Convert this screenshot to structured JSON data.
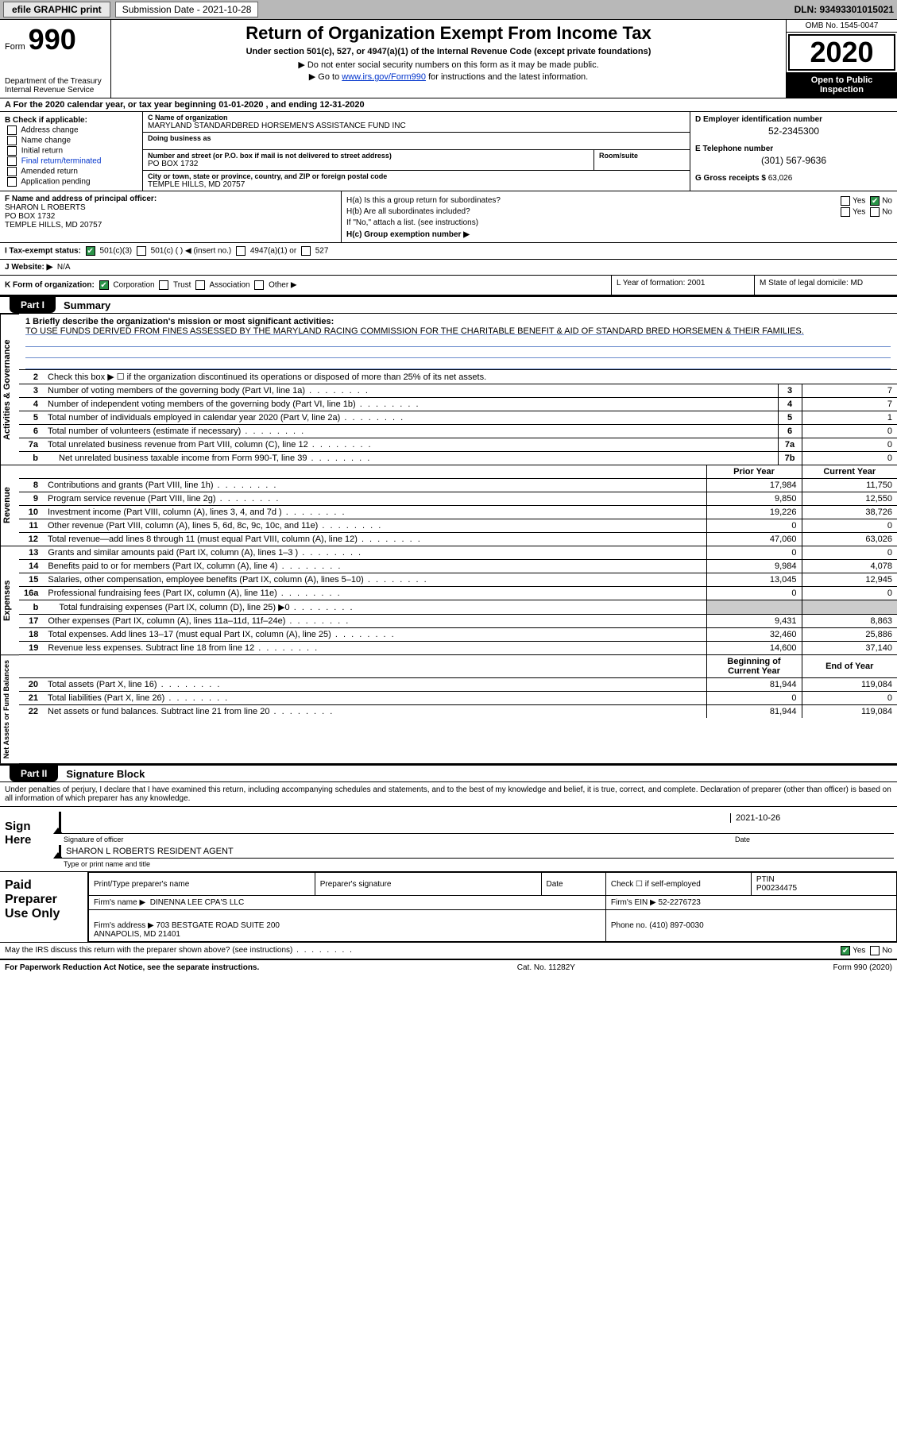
{
  "topbar": {
    "efile": "efile GRAPHIC print",
    "submission_label": "Submission Date - 2021-10-28",
    "dln": "DLN: 93493301015021"
  },
  "header": {
    "form_word": "Form",
    "form_num": "990",
    "dept": "Department of the Treasury\nInternal Revenue Service",
    "title": "Return of Organization Exempt From Income Tax",
    "subtitle": "Under section 501(c), 527, or 4947(a)(1) of the Internal Revenue Code (except private foundations)",
    "note1": "▶ Do not enter social security numbers on this form as it may be made public.",
    "note2_prefix": "▶ Go to ",
    "note2_link": "www.irs.gov/Form990",
    "note2_suffix": " for instructions and the latest information.",
    "omb": "OMB No. 1545-0047",
    "year": "2020",
    "inspection": "Open to Public Inspection"
  },
  "lineA": "A For the 2020 calendar year, or tax year beginning 01-01-2020   , and ending 12-31-2020",
  "boxB": {
    "hdr": "B Check if applicable:",
    "items": [
      "Address change",
      "Name change",
      "Initial return",
      "Final return/terminated",
      "Amended return",
      "Application pending"
    ]
  },
  "boxC": {
    "name_lbl": "C Name of organization",
    "name": "MARYLAND STANDARDBRED HORSEMEN'S ASSISTANCE FUND INC",
    "dba_lbl": "Doing business as",
    "dba": "",
    "addr_lbl": "Number and street (or P.O. box if mail is not delivered to street address)",
    "addr": "PO BOX 1732",
    "room_lbl": "Room/suite",
    "room": "",
    "city_lbl": "City or town, state or province, country, and ZIP or foreign postal code",
    "city": "TEMPLE HILLS, MD  20757"
  },
  "boxD": {
    "lbl": "D Employer identification number",
    "val": "52-2345300"
  },
  "boxE": {
    "lbl": "E Telephone number",
    "val": "(301) 567-9636"
  },
  "boxG": {
    "lbl": "G Gross receipts $",
    "val": "63,026"
  },
  "boxF": {
    "lbl": "F  Name and address of principal officer:",
    "name": "SHARON L ROBERTS",
    "addr1": "PO BOX 1732",
    "addr2": "TEMPLE HILLS, MD  20757"
  },
  "boxH": {
    "ha": "H(a)  Is this a group return for subordinates?",
    "ha_ans": "No",
    "hb": "H(b)  Are all subordinates included?",
    "hb_note": "If \"No,\" attach a list. (see instructions)",
    "hc": "H(c)  Group exemption number ▶"
  },
  "lineI": {
    "lbl": "I    Tax-exempt status:",
    "o1": "501(c)(3)",
    "o2": "501(c) (  )  ◀ (insert no.)",
    "o3": "4947(a)(1) or",
    "o4": "527"
  },
  "lineJ": {
    "lbl": "J   Website: ▶",
    "val": "N/A"
  },
  "lineK": {
    "lbl": "K Form of organization:",
    "opts": [
      "Corporation",
      "Trust",
      "Association",
      "Other ▶"
    ],
    "L": "L Year of formation: 2001",
    "M": "M State of legal domicile: MD"
  },
  "part1": {
    "tab": "Part I",
    "title": "Summary"
  },
  "side_labels": {
    "gov": "Activities & Governance",
    "rev": "Revenue",
    "exp": "Expenses",
    "net": "Net Assets or Fund Balances"
  },
  "mission": {
    "lbl": "1   Briefly describe the organization's mission or most significant activities:",
    "text": "TO USE FUNDS DERIVED FROM FINES ASSESSED BY THE MARYLAND RACING COMMISSION FOR THE CHARITABLE BENEFIT & AID OF STANDARD BRED HORSEMEN & THEIR FAMILIES."
  },
  "gov_rows": [
    {
      "n": "2",
      "t": "Check this box ▶ ☐  if the organization discontinued its operations or disposed of more than 25% of its net assets."
    },
    {
      "n": "3",
      "t": "Number of voting members of the governing body (Part VI, line 1a)",
      "box": "3",
      "v": "7"
    },
    {
      "n": "4",
      "t": "Number of independent voting members of the governing body (Part VI, line 1b)",
      "box": "4",
      "v": "7"
    },
    {
      "n": "5",
      "t": "Total number of individuals employed in calendar year 2020 (Part V, line 2a)",
      "box": "5",
      "v": "1"
    },
    {
      "n": "6",
      "t": "Total number of volunteers (estimate if necessary)",
      "box": "6",
      "v": "0"
    },
    {
      "n": "7a",
      "t": "Total unrelated business revenue from Part VIII, column (C), line 12",
      "box": "7a",
      "v": "0"
    },
    {
      "n": "b",
      "t": "Net unrelated business taxable income from Form 990-T, line 39",
      "box": "7b",
      "v": "0",
      "indent": true
    }
  ],
  "two_col_hdr": {
    "py": "Prior Year",
    "cy": "Current Year"
  },
  "rev_rows": [
    {
      "n": "8",
      "t": "Contributions and grants (Part VIII, line 1h)",
      "py": "17,984",
      "cy": "11,750"
    },
    {
      "n": "9",
      "t": "Program service revenue (Part VIII, line 2g)",
      "py": "9,850",
      "cy": "12,550"
    },
    {
      "n": "10",
      "t": "Investment income (Part VIII, column (A), lines 3, 4, and 7d )",
      "py": "19,226",
      "cy": "38,726"
    },
    {
      "n": "11",
      "t": "Other revenue (Part VIII, column (A), lines 5, 6d, 8c, 9c, 10c, and 11e)",
      "py": "0",
      "cy": "0"
    },
    {
      "n": "12",
      "t": "Total revenue—add lines 8 through 11 (must equal Part VIII, column (A), line 12)",
      "py": "47,060",
      "cy": "63,026"
    }
  ],
  "exp_rows": [
    {
      "n": "13",
      "t": "Grants and similar amounts paid (Part IX, column (A), lines 1–3 )",
      "py": "0",
      "cy": "0"
    },
    {
      "n": "14",
      "t": "Benefits paid to or for members (Part IX, column (A), line 4)",
      "py": "9,984",
      "cy": "4,078"
    },
    {
      "n": "15",
      "t": "Salaries, other compensation, employee benefits (Part IX, column (A), lines 5–10)",
      "py": "13,045",
      "cy": "12,945"
    },
    {
      "n": "16a",
      "t": "Professional fundraising fees (Part IX, column (A), line 11e)",
      "py": "0",
      "cy": "0"
    },
    {
      "n": "b",
      "t": "Total fundraising expenses (Part IX, column (D), line 25) ▶0",
      "py": "",
      "cy": "",
      "shade": true,
      "indent": true
    },
    {
      "n": "17",
      "t": "Other expenses (Part IX, column (A), lines 11a–11d, 11f–24e)",
      "py": "9,431",
      "cy": "8,863"
    },
    {
      "n": "18",
      "t": "Total expenses. Add lines 13–17 (must equal Part IX, column (A), line 25)",
      "py": "32,460",
      "cy": "25,886"
    },
    {
      "n": "19",
      "t": "Revenue less expenses. Subtract line 18 from line 12",
      "py": "14,600",
      "cy": "37,140"
    }
  ],
  "net_hdr": {
    "py": "Beginning of Current Year",
    "cy": "End of Year"
  },
  "net_rows": [
    {
      "n": "20",
      "t": "Total assets (Part X, line 16)",
      "py": "81,944",
      "cy": "119,084"
    },
    {
      "n": "21",
      "t": "Total liabilities (Part X, line 26)",
      "py": "0",
      "cy": "0"
    },
    {
      "n": "22",
      "t": "Net assets or fund balances. Subtract line 21 from line 20",
      "py": "81,944",
      "cy": "119,084"
    }
  ],
  "part2": {
    "tab": "Part II",
    "title": "Signature Block"
  },
  "penalties": "Under penalties of perjury, I declare that I have examined this return, including accompanying schedules and statements, and to the best of my knowledge and belief, it is true, correct, and complete. Declaration of preparer (other than officer) is based on all information of which preparer has any knowledge.",
  "sign": {
    "label": "Sign Here",
    "sig_lbl": "Signature of officer",
    "date_lbl": "Date",
    "date": "2021-10-26",
    "name": "SHARON L ROBERTS  RESIDENT AGENT",
    "name_lbl": "Type or print name and title"
  },
  "preparer": {
    "label": "Paid Preparer Use Only",
    "cols": {
      "c1": "Print/Type preparer's name",
      "c2": "Preparer's signature",
      "c3": "Date",
      "c4": "Check ☐ if self-employed",
      "c5_lbl": "PTIN",
      "c5": "P00234475"
    },
    "firm_name_lbl": "Firm's name     ▶",
    "firm_name": "DINENNA LEE CPA'S LLC",
    "firm_ein_lbl": "Firm's EIN ▶",
    "firm_ein": "52-2276723",
    "firm_addr_lbl": "Firm's address ▶",
    "firm_addr": "703 BESTGATE ROAD SUITE 200\nANNAPOLIS, MD  21401",
    "phone_lbl": "Phone no.",
    "phone": "(410) 897-0030"
  },
  "discuss": {
    "q": "May the IRS discuss this return with the preparer shown above? (see instructions)",
    "ans": "Yes"
  },
  "footer": {
    "left": "For Paperwork Reduction Act Notice, see the separate instructions.",
    "mid": "Cat. No. 11282Y",
    "right": "Form 990 (2020)"
  }
}
